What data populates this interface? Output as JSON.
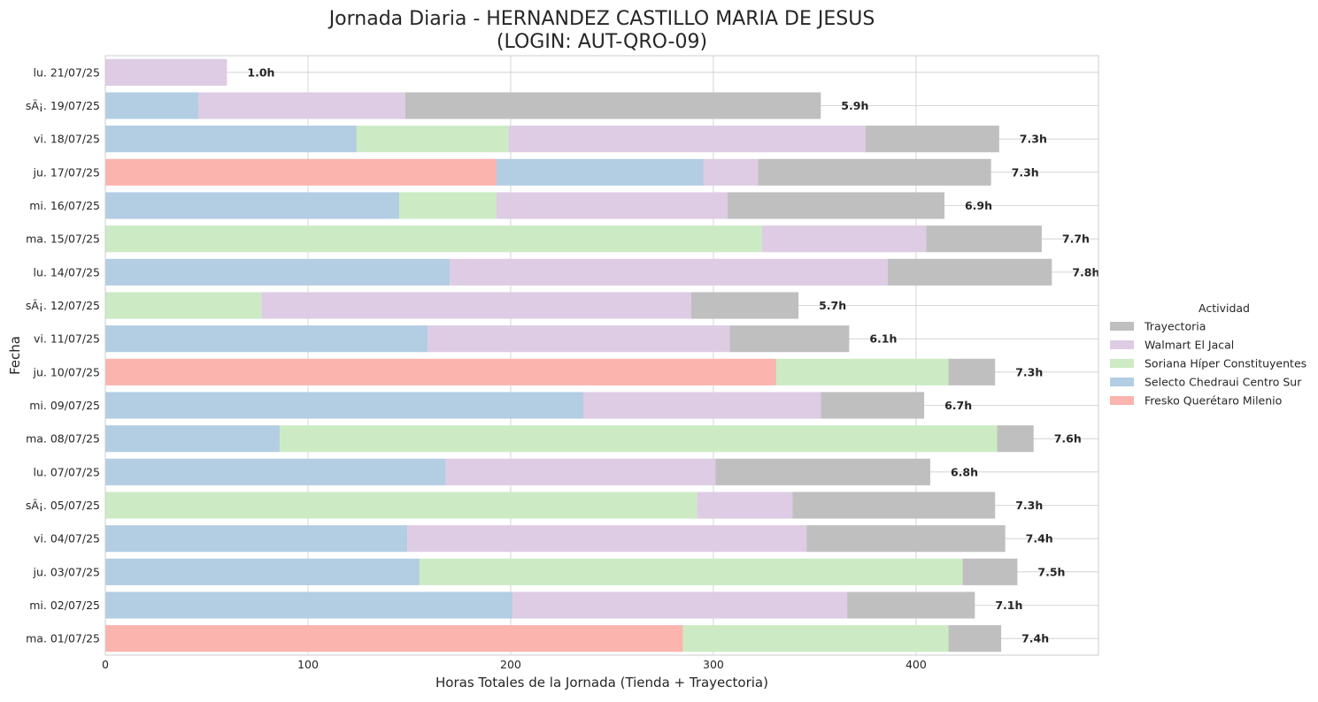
{
  "chart_data": {
    "type": "bar",
    "orientation": "horizontal",
    "stacked": true,
    "title": "Jornada Diaria - HERNANDEZ CASTILLO MARIA DE JESUS\n(LOGIN: AUT-QRO-09)",
    "xlabel": "Horas Totales de la Jornada (Tienda + Trayectoria)",
    "ylabel": "Fecha",
    "xlim": [
      0,
      490
    ],
    "xticks": [
      0,
      100,
      200,
      300,
      400
    ],
    "grid": true,
    "legend": {
      "title": "Actividad",
      "placement": "right"
    },
    "categories": [
      "lu. 21/07/25",
      "sÃ¡. 19/07/25",
      "vi. 18/07/25",
      "ju. 17/07/25",
      "mi. 16/07/25",
      "ma. 15/07/25",
      "lu. 14/07/25",
      "sÃ¡. 12/07/25",
      "vi. 11/07/25",
      "ju. 10/07/25",
      "mi. 09/07/25",
      "ma. 08/07/25",
      "lu. 07/07/25",
      "sÃ¡. 05/07/25",
      "vi. 04/07/25",
      "ju. 03/07/25",
      "mi. 02/07/25",
      "ma. 01/07/25"
    ],
    "series": [
      {
        "name": "Fresko Querétaro Milenio",
        "color": "#fbb4ae",
        "values": [
          0,
          0,
          0,
          193,
          0,
          0,
          0,
          0,
          0,
          331,
          0,
          0,
          0,
          0,
          0,
          0,
          0,
          285
        ]
      },
      {
        "name": "Selecto Chedraui Centro Sur",
        "color": "#b3cde3",
        "values": [
          0,
          46,
          124,
          102,
          145,
          0,
          170,
          0,
          159,
          0,
          236,
          86,
          168,
          0,
          149,
          155,
          201,
          0
        ]
      },
      {
        "name": "Soriana Híper Constituyentes",
        "color": "#ccebc5",
        "values": [
          0,
          0,
          75,
          0,
          48,
          324,
          0,
          77,
          0,
          85,
          0,
          354,
          0,
          292,
          0,
          268,
          0,
          131
        ]
      },
      {
        "name": "Walmart El Jacal",
        "color": "#decbe4",
        "values": [
          60,
          102,
          176,
          27,
          114,
          81,
          216,
          212,
          149,
          0,
          117,
          0,
          133,
          47,
          197,
          0,
          165,
          0
        ]
      },
      {
        "name": "Trayectoria",
        "color": "#bfbfbf",
        "values": [
          0,
          205,
          66,
          115,
          107,
          57,
          81,
          53,
          59,
          23,
          51,
          18,
          106,
          100,
          98,
          27,
          63,
          26
        ]
      }
    ],
    "legend_order": [
      "Trayectoria",
      "Walmart El Jacal",
      "Soriana Híper Constituyentes",
      "Selecto Chedraui Centro Sur",
      "Fresko Querétaro Milenio"
    ],
    "total_labels": [
      "1.0h",
      "5.9h",
      "7.3h",
      "7.3h",
      "6.9h",
      "7.7h",
      "7.8h",
      "5.7h",
      "6.1h",
      "7.3h",
      "6.7h",
      "7.6h",
      "6.8h",
      "7.3h",
      "7.4h",
      "7.5h",
      "7.1h",
      "7.4h"
    ]
  }
}
